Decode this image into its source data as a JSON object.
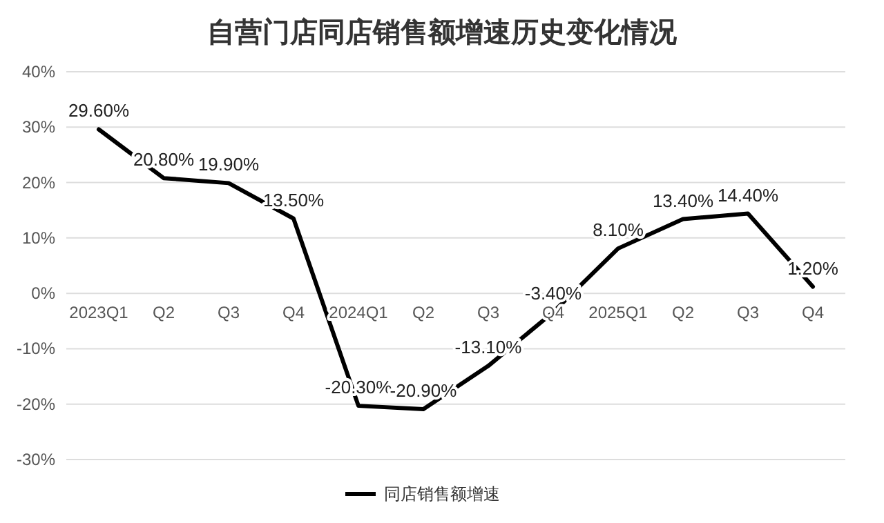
{
  "chart_data": {
    "type": "line",
    "title": "自营门店同店销售额增速历史变化情况",
    "categories": [
      "2023Q1",
      "Q2",
      "Q3",
      "Q4",
      "2024Q1",
      "Q2",
      "Q3",
      "Q4",
      "2025Q1",
      "Q2",
      "Q3",
      "Q4"
    ],
    "series": [
      {
        "name": "同店销售额增速",
        "color": "#000000",
        "values": [
          29.6,
          20.8,
          19.9,
          13.5,
          -20.3,
          -20.9,
          -13.1,
          -3.4,
          8.1,
          13.4,
          14.4,
          1.2
        ],
        "value_labels": [
          "29.60%",
          "20.80%",
          "19.90%",
          "13.50%",
          "-20.30%",
          "-20.90%",
          "-13.10%",
          "-3.40%",
          "8.10%",
          "13.40%",
          "14.40%",
          "1.20%"
        ]
      }
    ],
    "ylim": [
      -30,
      40
    ],
    "yticks": [
      {
        "value": -30,
        "label": "-30%"
      },
      {
        "value": -20,
        "label": "-20%"
      },
      {
        "value": -10,
        "label": "-10%"
      },
      {
        "value": 0,
        "label": "0%"
      },
      {
        "value": 10,
        "label": "10%"
      },
      {
        "value": 20,
        "label": "20%"
      },
      {
        "value": 30,
        "label": "30%"
      },
      {
        "value": 40,
        "label": "40%"
      }
    ],
    "grid": "y",
    "legend": "bottom",
    "marker": "none",
    "line_style": "solid"
  }
}
